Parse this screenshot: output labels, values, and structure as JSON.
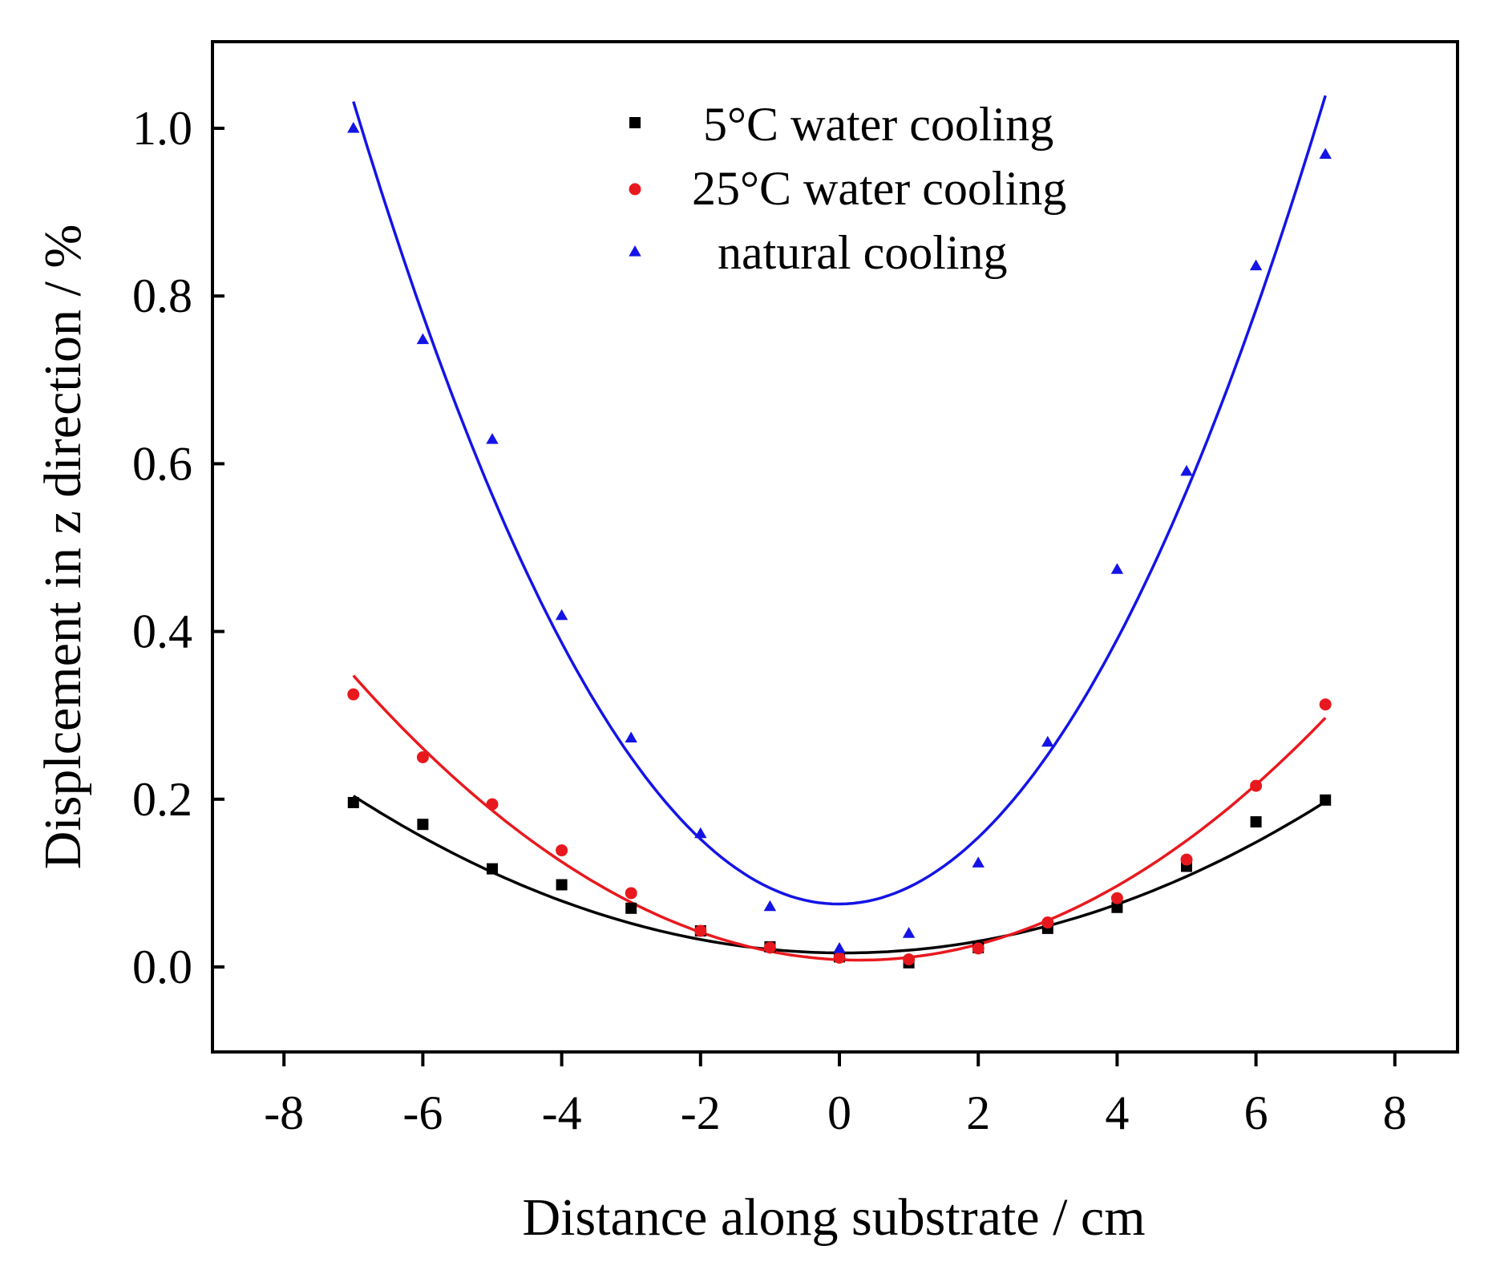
{
  "chart_data": {
    "type": "scatter",
    "title": "",
    "xlabel": "Distance along substrate / cm",
    "ylabel": "Displcement in z direction / %",
    "xlim": [
      -9,
      9
    ],
    "ylim": [
      -0.1,
      1.1
    ],
    "xticks": [
      -8,
      -6,
      -4,
      -2,
      0,
      2,
      4,
      6,
      8
    ],
    "xtick_labels": [
      "-8",
      "-6",
      "-4",
      "-2",
      "0",
      "2",
      "4",
      "6",
      "8"
    ],
    "yticks": [
      0.0,
      0.2,
      0.4,
      0.6,
      0.8,
      1.0
    ],
    "ytick_labels": [
      "0.0",
      "0.2",
      "0.4",
      "0.6",
      "0.8",
      "1.0"
    ],
    "grid": false,
    "legend_position": "top-center",
    "x": [
      -7,
      -6,
      -5,
      -4,
      -3,
      -2,
      -1,
      0,
      1,
      2,
      3,
      4,
      5,
      6,
      7
    ],
    "series": [
      {
        "name": "5°C water cooling",
        "marker": "square",
        "color": "#000000",
        "values": [
          0.196,
          0.17,
          0.117,
          0.098,
          0.07,
          0.043,
          0.024,
          0.012,
          0.005,
          0.023,
          0.046,
          0.071,
          0.12,
          0.173,
          0.199
        ],
        "fit": {
          "a": 0.00375,
          "b": -0.0005,
          "c": 0.0167
        }
      },
      {
        "name": "25°C water cooling",
        "marker": "circle",
        "color": "#e8191e",
        "values": [
          0.325,
          0.25,
          0.194,
          0.139,
          0.088,
          0.043,
          0.023,
          0.011,
          0.009,
          0.022,
          0.053,
          0.082,
          0.128,
          0.216,
          0.313
        ],
        "fit": {
          "a": 0.0064,
          "b": -0.0036,
          "c": 0.0086
        }
      },
      {
        "name": "natural cooling",
        "marker": "triangle",
        "color": "#1414e6",
        "values": [
          1.0,
          0.748,
          0.629,
          0.419,
          0.273,
          0.159,
          0.072,
          0.022,
          0.04,
          0.124,
          0.268,
          0.474,
          0.591,
          0.836,
          0.969
        ],
        "fit": {
          "a": 0.0196,
          "b": 0.0005,
          "c": 0.075
        }
      }
    ]
  }
}
